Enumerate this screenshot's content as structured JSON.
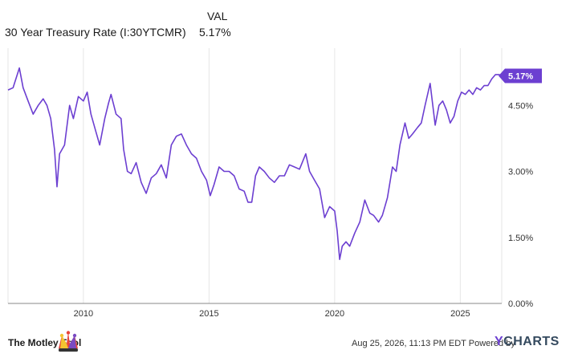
{
  "legend": {
    "header": "VAL",
    "series_name": "30 Year Treasury Rate (I:30YTCMR)",
    "series_value": "5.17%"
  },
  "footer": {
    "brand": "The Motley Fool",
    "attribution": "Aug 25, 2026, 11:13 PM EDT Powered by",
    "ycharts_y": "Y",
    "ycharts_rest": "CHARTS"
  },
  "colors": {
    "line": "#6c3fd1",
    "label_bg": "#6c3fd1",
    "grid": "#e6e6e6"
  },
  "icons": {
    "logo": "jester-hat-icon"
  },
  "chart_data": {
    "type": "line",
    "title": "",
    "xlabel": "",
    "ylabel": "",
    "ylim": [
      0,
      5.8
    ],
    "xlim": [
      2007.0,
      2026.65
    ],
    "y_ticks": [
      0,
      1.5,
      3.0,
      4.5
    ],
    "y_tick_labels": [
      "0.00%",
      "1.50%",
      "3.00%",
      "4.50%"
    ],
    "x_ticks": [
      2010,
      2015,
      2020,
      2025
    ],
    "x_tick_labels": [
      "2010",
      "2015",
      "2020",
      "2025"
    ],
    "last_value_label": "5.17%",
    "grid": "vertical",
    "series": [
      {
        "name": "30 Year Treasury Rate (I:30YTCMR)",
        "x": [
          2007.0,
          2007.2,
          2007.45,
          2007.6,
          2007.8,
          2008.0,
          2008.2,
          2008.4,
          2008.55,
          2008.7,
          2008.85,
          2008.95,
          2009.05,
          2009.25,
          2009.45,
          2009.6,
          2009.8,
          2010.0,
          2010.15,
          2010.3,
          2010.5,
          2010.65,
          2010.85,
          2011.0,
          2011.1,
          2011.3,
          2011.5,
          2011.6,
          2011.75,
          2011.9,
          2012.1,
          2012.3,
          2012.5,
          2012.7,
          2012.9,
          2013.1,
          2013.3,
          2013.5,
          2013.7,
          2013.9,
          2014.1,
          2014.3,
          2014.5,
          2014.7,
          2014.9,
          2015.05,
          2015.2,
          2015.4,
          2015.6,
          2015.8,
          2016.0,
          2016.2,
          2016.4,
          2016.55,
          2016.7,
          2016.85,
          2017.0,
          2017.2,
          2017.4,
          2017.6,
          2017.8,
          2018.0,
          2018.2,
          2018.4,
          2018.6,
          2018.85,
          2019.0,
          2019.2,
          2019.4,
          2019.6,
          2019.8,
          2020.0,
          2020.1,
          2020.2,
          2020.3,
          2020.45,
          2020.6,
          2020.8,
          2021.0,
          2021.2,
          2021.4,
          2021.55,
          2021.75,
          2021.9,
          2022.1,
          2022.3,
          2022.45,
          2022.6,
          2022.8,
          2022.95,
          2023.1,
          2023.3,
          2023.45,
          2023.6,
          2023.8,
          2024.0,
          2024.15,
          2024.3,
          2024.45,
          2024.6,
          2024.75,
          2024.9,
          2025.05,
          2025.2,
          2025.35,
          2025.5,
          2025.65,
          2025.8,
          2025.95,
          2026.1,
          2026.25,
          2026.4,
          2026.55,
          2026.65
        ],
        "values": [
          4.85,
          4.9,
          5.35,
          4.9,
          4.6,
          4.3,
          4.5,
          4.65,
          4.5,
          4.2,
          3.5,
          2.65,
          3.4,
          3.6,
          4.5,
          4.2,
          4.7,
          4.6,
          4.8,
          4.3,
          3.9,
          3.6,
          4.2,
          4.55,
          4.75,
          4.3,
          4.2,
          3.5,
          3.0,
          2.95,
          3.2,
          2.75,
          2.5,
          2.85,
          2.95,
          3.15,
          2.85,
          3.6,
          3.8,
          3.85,
          3.6,
          3.4,
          3.3,
          3.0,
          2.8,
          2.45,
          2.7,
          3.1,
          3.0,
          3.0,
          2.9,
          2.6,
          2.55,
          2.3,
          2.3,
          2.9,
          3.1,
          3.0,
          2.85,
          2.75,
          2.9,
          2.9,
          3.15,
          3.1,
          3.05,
          3.4,
          3.0,
          2.8,
          2.6,
          1.95,
          2.2,
          2.1,
          1.65,
          1.0,
          1.3,
          1.4,
          1.3,
          1.6,
          1.85,
          2.35,
          2.05,
          2.0,
          1.85,
          2.0,
          2.4,
          3.1,
          3.0,
          3.6,
          4.1,
          3.75,
          3.85,
          4.0,
          4.1,
          4.5,
          5.0,
          4.05,
          4.5,
          4.6,
          4.4,
          4.1,
          4.25,
          4.6,
          4.8,
          4.75,
          4.85,
          4.75,
          4.9,
          4.85,
          4.95,
          4.95,
          5.1,
          5.2,
          5.2,
          5.17
        ]
      }
    ]
  }
}
